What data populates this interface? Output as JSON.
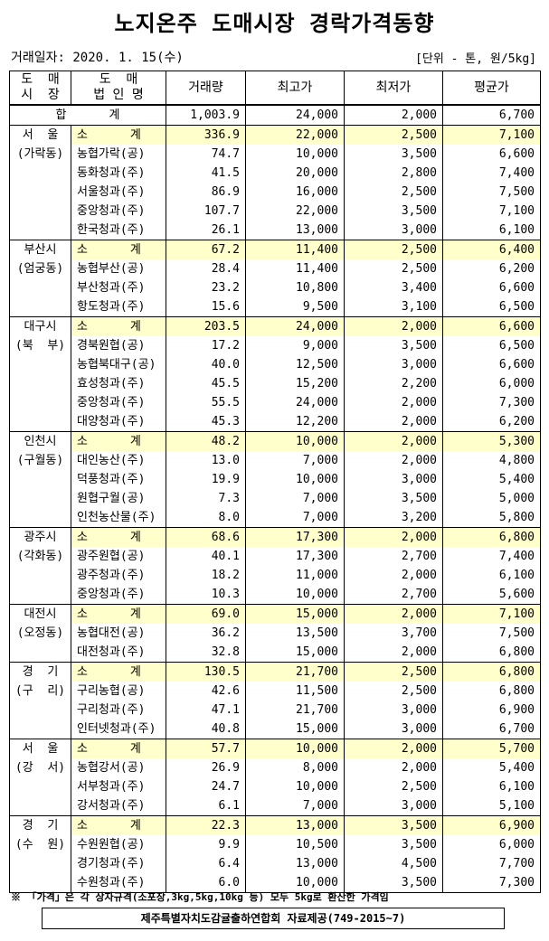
{
  "header": {
    "title": "노지온주 도매시장 경락가격동향",
    "date": "거래일자: 2020. 1. 15(수)",
    "unit": "[단위 - 톤, 원/5kg]"
  },
  "table": {
    "columns": [
      [
        "도  매",
        "시  장"
      ],
      [
        "도  매",
        "법 인 명"
      ],
      [
        "거래량"
      ],
      [
        "최고가"
      ],
      [
        "최저가"
      ],
      [
        "평균가"
      ]
    ],
    "total": {
      "label": "합      계",
      "cells": [
        "1,003.9",
        "24,000",
        "2,000",
        "6,700"
      ]
    },
    "markets": [
      {
        "name": [
          "서  울",
          "(가락동)"
        ],
        "rows": [
          [
            "소      계",
            "336.9",
            "22,000",
            "2,500",
            "7,100"
          ],
          [
            "농협가락(공)",
            "74.7",
            "10,000",
            "3,500",
            "6,600"
          ],
          [
            "동화청과(주)",
            "41.5",
            "20,000",
            "2,800",
            "7,400"
          ],
          [
            "서울청과(주)",
            "86.9",
            "16,000",
            "2,500",
            "7,500"
          ],
          [
            "중앙청과(주)",
            "107.7",
            "22,000",
            "3,500",
            "7,100"
          ],
          [
            "한국청과(주)",
            "26.1",
            "13,000",
            "3,000",
            "6,100"
          ]
        ]
      },
      {
        "name": [
          "부산시",
          "(엄궁동)"
        ],
        "rows": [
          [
            "소      계",
            "67.2",
            "11,400",
            "2,500",
            "6,400"
          ],
          [
            "농협부산(공)",
            "28.4",
            "11,400",
            "2,500",
            "6,200"
          ],
          [
            "부산청과(주)",
            "23.2",
            "10,800",
            "3,400",
            "6,600"
          ],
          [
            "항도청과(주)",
            "15.6",
            "9,500",
            "3,100",
            "6,500"
          ]
        ]
      },
      {
        "name": [
          "대구시",
          "(북  부)"
        ],
        "rows": [
          [
            "소      계",
            "203.5",
            "24,000",
            "2,000",
            "6,600"
          ],
          [
            "경북원협(공)",
            "17.2",
            "9,000",
            "3,500",
            "6,500"
          ],
          [
            "농협북대구(공)",
            "40.0",
            "12,500",
            "3,000",
            "6,600"
          ],
          [
            "효성청과(주)",
            "45.5",
            "15,200",
            "2,200",
            "6,000"
          ],
          [
            "중앙청과(주)",
            "55.5",
            "24,000",
            "2,000",
            "7,300"
          ],
          [
            "대양청과(주)",
            "45.3",
            "12,200",
            "2,000",
            "6,200"
          ]
        ]
      },
      {
        "name": [
          "인천시",
          "(구월동)"
        ],
        "rows": [
          [
            "소      계",
            "48.2",
            "10,000",
            "2,000",
            "5,300"
          ],
          [
            "대인농산(주)",
            "13.0",
            "7,000",
            "2,000",
            "4,800"
          ],
          [
            "덕풍청과(주)",
            "19.9",
            "10,000",
            "3,000",
            "5,400"
          ],
          [
            "원협구월(공)",
            "7.3",
            "7,000",
            "3,500",
            "5,000"
          ],
          [
            "인천농산물(주)",
            "8.0",
            "7,000",
            "3,200",
            "5,800"
          ]
        ]
      },
      {
        "name": [
          "광주시",
          "(각화동)"
        ],
        "rows": [
          [
            "소      계",
            "68.6",
            "17,300",
            "2,000",
            "6,800"
          ],
          [
            "광주원협(공)",
            "40.1",
            "17,300",
            "2,700",
            "7,400"
          ],
          [
            "광주청과(주)",
            "18.2",
            "11,000",
            "2,000",
            "6,100"
          ],
          [
            "중앙청과(주)",
            "10.3",
            "10,000",
            "2,700",
            "5,600"
          ]
        ]
      },
      {
        "name": [
          "대전시",
          "(오정동)"
        ],
        "rows": [
          [
            "소      계",
            "69.0",
            "15,000",
            "2,000",
            "7,100"
          ],
          [
            "농협대전(공)",
            "36.2",
            "13,500",
            "3,700",
            "7,500"
          ],
          [
            "대전청과(주)",
            "32.8",
            "15,000",
            "2,000",
            "6,800"
          ]
        ]
      },
      {
        "name": [
          "경  기",
          "(구  리)"
        ],
        "rows": [
          [
            "소      계",
            "130.5",
            "21,700",
            "2,500",
            "6,800"
          ],
          [
            "구리농협(공)",
            "42.6",
            "11,500",
            "2,500",
            "6,800"
          ],
          [
            "구리청과(주)",
            "47.1",
            "21,700",
            "3,000",
            "6,900"
          ],
          [
            "인터넷청과(주)",
            "40.8",
            "15,000",
            "3,000",
            "6,700"
          ]
        ]
      },
      {
        "name": [
          "서  울",
          "(강  서)"
        ],
        "rows": [
          [
            "소      계",
            "57.7",
            "10,000",
            "2,000",
            "5,700"
          ],
          [
            "농협강서(공)",
            "26.9",
            "8,000",
            "2,000",
            "5,400"
          ],
          [
            "서부청과(주)",
            "24.7",
            "10,000",
            "2,500",
            "6,100"
          ],
          [
            "강서청과(주)",
            "6.1",
            "7,000",
            "3,000",
            "5,100"
          ]
        ]
      },
      {
        "name": [
          "경  기",
          "(수  원)"
        ],
        "rows": [
          [
            "소      계",
            "22.3",
            "13,000",
            "3,500",
            "6,900"
          ],
          [
            "수원원협(공)",
            "9.9",
            "10,500",
            "3,500",
            "6,000"
          ],
          [
            "경기청과(주)",
            "6.4",
            "13,000",
            "4,500",
            "7,700"
          ],
          [
            "수원청과(주)",
            "6.0",
            "10,000",
            "3,500",
            "7,300"
          ]
        ]
      }
    ]
  },
  "footer": {
    "note": "※ 「가격」은 각 상자규격(소포장,3kg,5kg,10kg 등) 모두 5kg로 환산한 가격임",
    "source": "제주특별자치도감귤출하연합회 자료제공(749-2015~7)"
  }
}
